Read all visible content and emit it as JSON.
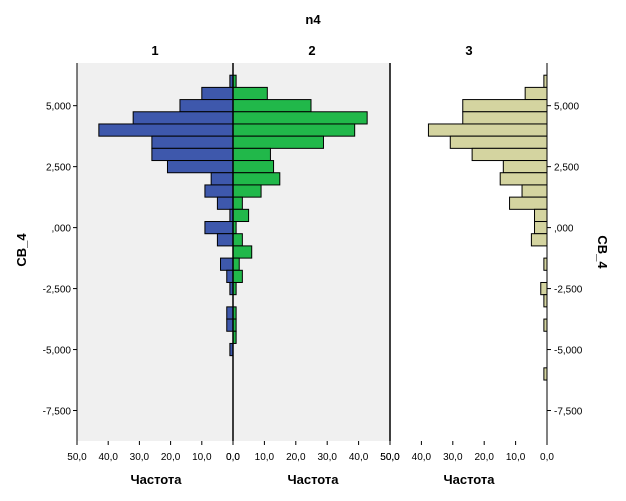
{
  "chart_data": {
    "type": "population-pyramid",
    "title": "n4",
    "ylabel": "CB_4",
    "xlabel": "Частота",
    "ylim": [
      -8750,
      6750
    ],
    "yticks": [
      5000,
      2500,
      0,
      -2500,
      -5000,
      -7500
    ],
    "ytick_labels": [
      "5,000",
      "2,500",
      ",000",
      "-2,500",
      "-5,000",
      "-7,500"
    ],
    "xticks_left": [
      "50,0",
      "40,0",
      "30,0",
      "20,0",
      "10,0",
      "0,0"
    ],
    "xticks_right": [
      "0,0",
      "10,0",
      "20,0",
      "30,0",
      "40,0",
      "50,0"
    ],
    "xticks_panel3": [
      "50,0",
      "40,0",
      "30,0",
      "20,0",
      "10,0",
      "0,0"
    ],
    "xlim": [
      0,
      50
    ],
    "bin_width": 500,
    "bins_center": [
      6000,
      5500,
      5000,
      4500,
      4000,
      3500,
      3000,
      2500,
      2000,
      1500,
      1000,
      500,
      0,
      -500,
      -1000,
      -1500,
      -2000,
      -2500,
      -3000,
      -3500,
      -4000,
      -4500,
      -5000,
      -5500,
      -6000,
      -6500
    ],
    "panels": [
      {
        "label": "1",
        "color": "#3e58ac",
        "side": "left",
        "values": [
          1,
          10,
          17,
          32,
          43,
          26,
          26,
          21,
          7,
          9,
          5,
          1,
          9,
          5,
          0,
          4,
          2,
          1,
          0,
          2,
          2,
          0,
          1,
          0,
          0,
          0
        ]
      },
      {
        "label": "2",
        "color": "#21b84a",
        "side": "right",
        "values": [
          1,
          11,
          25,
          43,
          39,
          29,
          12,
          13,
          15,
          9,
          3,
          5,
          1,
          3,
          6,
          2,
          3,
          1,
          0,
          1,
          1,
          1,
          0,
          0,
          0,
          0
        ]
      },
      {
        "label": "3",
        "color": "#d4d4a0",
        "side": "left",
        "values": [
          1,
          7,
          27,
          27,
          38,
          31,
          24,
          14,
          15,
          8,
          12,
          4,
          4,
          5,
          0,
          1,
          0,
          2,
          1,
          0,
          1,
          0,
          0,
          0,
          1,
          0
        ]
      }
    ]
  }
}
